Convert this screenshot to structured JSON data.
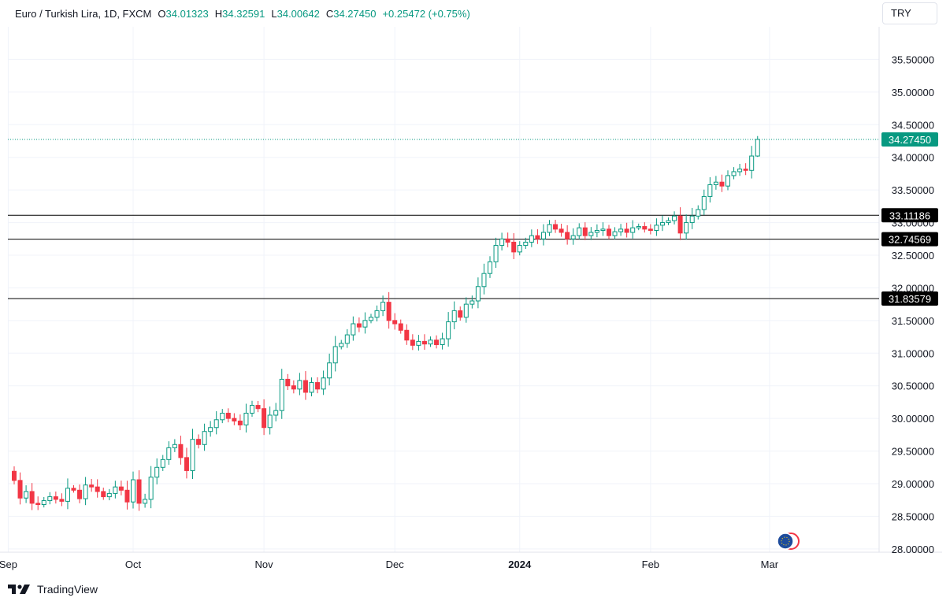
{
  "legend": {
    "symbol": "Euro / Turkish Lira, 1D, FXCM",
    "open_label": "O",
    "open": "34.01323",
    "high_label": "H",
    "high": "34.32591",
    "low_label": "L",
    "low": "34.00642",
    "close_label": "C",
    "close": "34.27450",
    "change": "+0.25472 (+0.75%)"
  },
  "currency_button": "TRY",
  "branding": "TradingView",
  "colors": {
    "up": "#089981",
    "down": "#f23645",
    "grid": "#f0f3fa",
    "level": "#000000"
  },
  "chart_data": {
    "type": "candlestick",
    "title": "Euro / Turkish Lira, 1D, FXCM",
    "y_range": [
      27.95,
      36.0
    ],
    "y_ticks": [
      "35.50000",
      "35.00000",
      "34.50000",
      "34.00000",
      "33.50000",
      "33.00000",
      "32.50000",
      "32.00000",
      "31.50000",
      "31.00000",
      "30.50000",
      "30.00000",
      "29.50000",
      "29.00000",
      "28.50000",
      "28.00000"
    ],
    "x_ticks": [
      {
        "label": "Sep",
        "bar": -1,
        "bold": false
      },
      {
        "label": "Oct",
        "bar": 20,
        "bold": false
      },
      {
        "label": "Nov",
        "bar": 42,
        "bold": false
      },
      {
        "label": "Dec",
        "bar": 64,
        "bold": false
      },
      {
        "label": "2024",
        "bar": 85,
        "bold": true
      },
      {
        "label": "Feb",
        "bar": 107,
        "bold": false
      },
      {
        "label": "Mar",
        "bar": 127,
        "bold": false
      }
    ],
    "last_price": "34.27450",
    "horizontal_levels": [
      {
        "value": 33.11186,
        "label": "33.11186"
      },
      {
        "value": 32.74569,
        "label": "32.74569"
      },
      {
        "value": 31.83579,
        "label": "31.83579"
      }
    ],
    "closes": [
      29.05,
      28.78,
      28.88,
      28.7,
      28.68,
      28.74,
      28.8,
      28.76,
      28.73,
      28.93,
      28.9,
      28.77,
      28.98,
      28.95,
      28.88,
      28.8,
      28.85,
      28.95,
      28.9,
      28.72,
      29.06,
      28.7,
      28.76,
      29.1,
      29.25,
      29.37,
      29.55,
      29.6,
      29.4,
      29.2,
      29.68,
      29.6,
      29.8,
      29.86,
      29.98,
      30.08,
      30.0,
      29.96,
      29.9,
      30.08,
      30.2,
      30.15,
      29.86,
      30.05,
      30.12,
      30.6,
      30.5,
      30.45,
      30.58,
      30.4,
      30.55,
      30.45,
      30.62,
      30.85,
      31.1,
      31.15,
      31.28,
      31.45,
      31.4,
      31.5,
      31.55,
      31.65,
      31.78,
      31.5,
      31.45,
      31.35,
      31.2,
      31.12,
      31.18,
      31.14,
      31.2,
      31.13,
      31.22,
      31.48,
      31.65,
      31.55,
      31.75,
      31.8,
      32.02,
      32.22,
      32.4,
      32.65,
      32.75,
      32.7,
      32.55,
      32.65,
      32.7,
      32.8,
      32.75,
      32.85,
      32.97,
      32.9,
      32.85,
      32.75,
      32.8,
      32.92,
      32.8,
      32.85,
      32.88,
      32.9,
      32.8,
      32.86,
      32.9,
      32.85,
      32.92,
      32.94,
      32.9,
      32.88,
      32.96,
      33.0,
      33.03,
      33.1,
      32.84,
      33.0,
      33.1,
      33.2,
      33.4,
      33.58,
      33.62,
      33.56,
      33.72,
      33.78,
      33.82,
      33.8,
      34.02,
      34.2745
    ],
    "series_note": "Daily OHLC, roughly Sep 2023 to early Mar 2024; last candle O 34.01323 H 34.32591 L 34.00642 C 34.27450"
  }
}
